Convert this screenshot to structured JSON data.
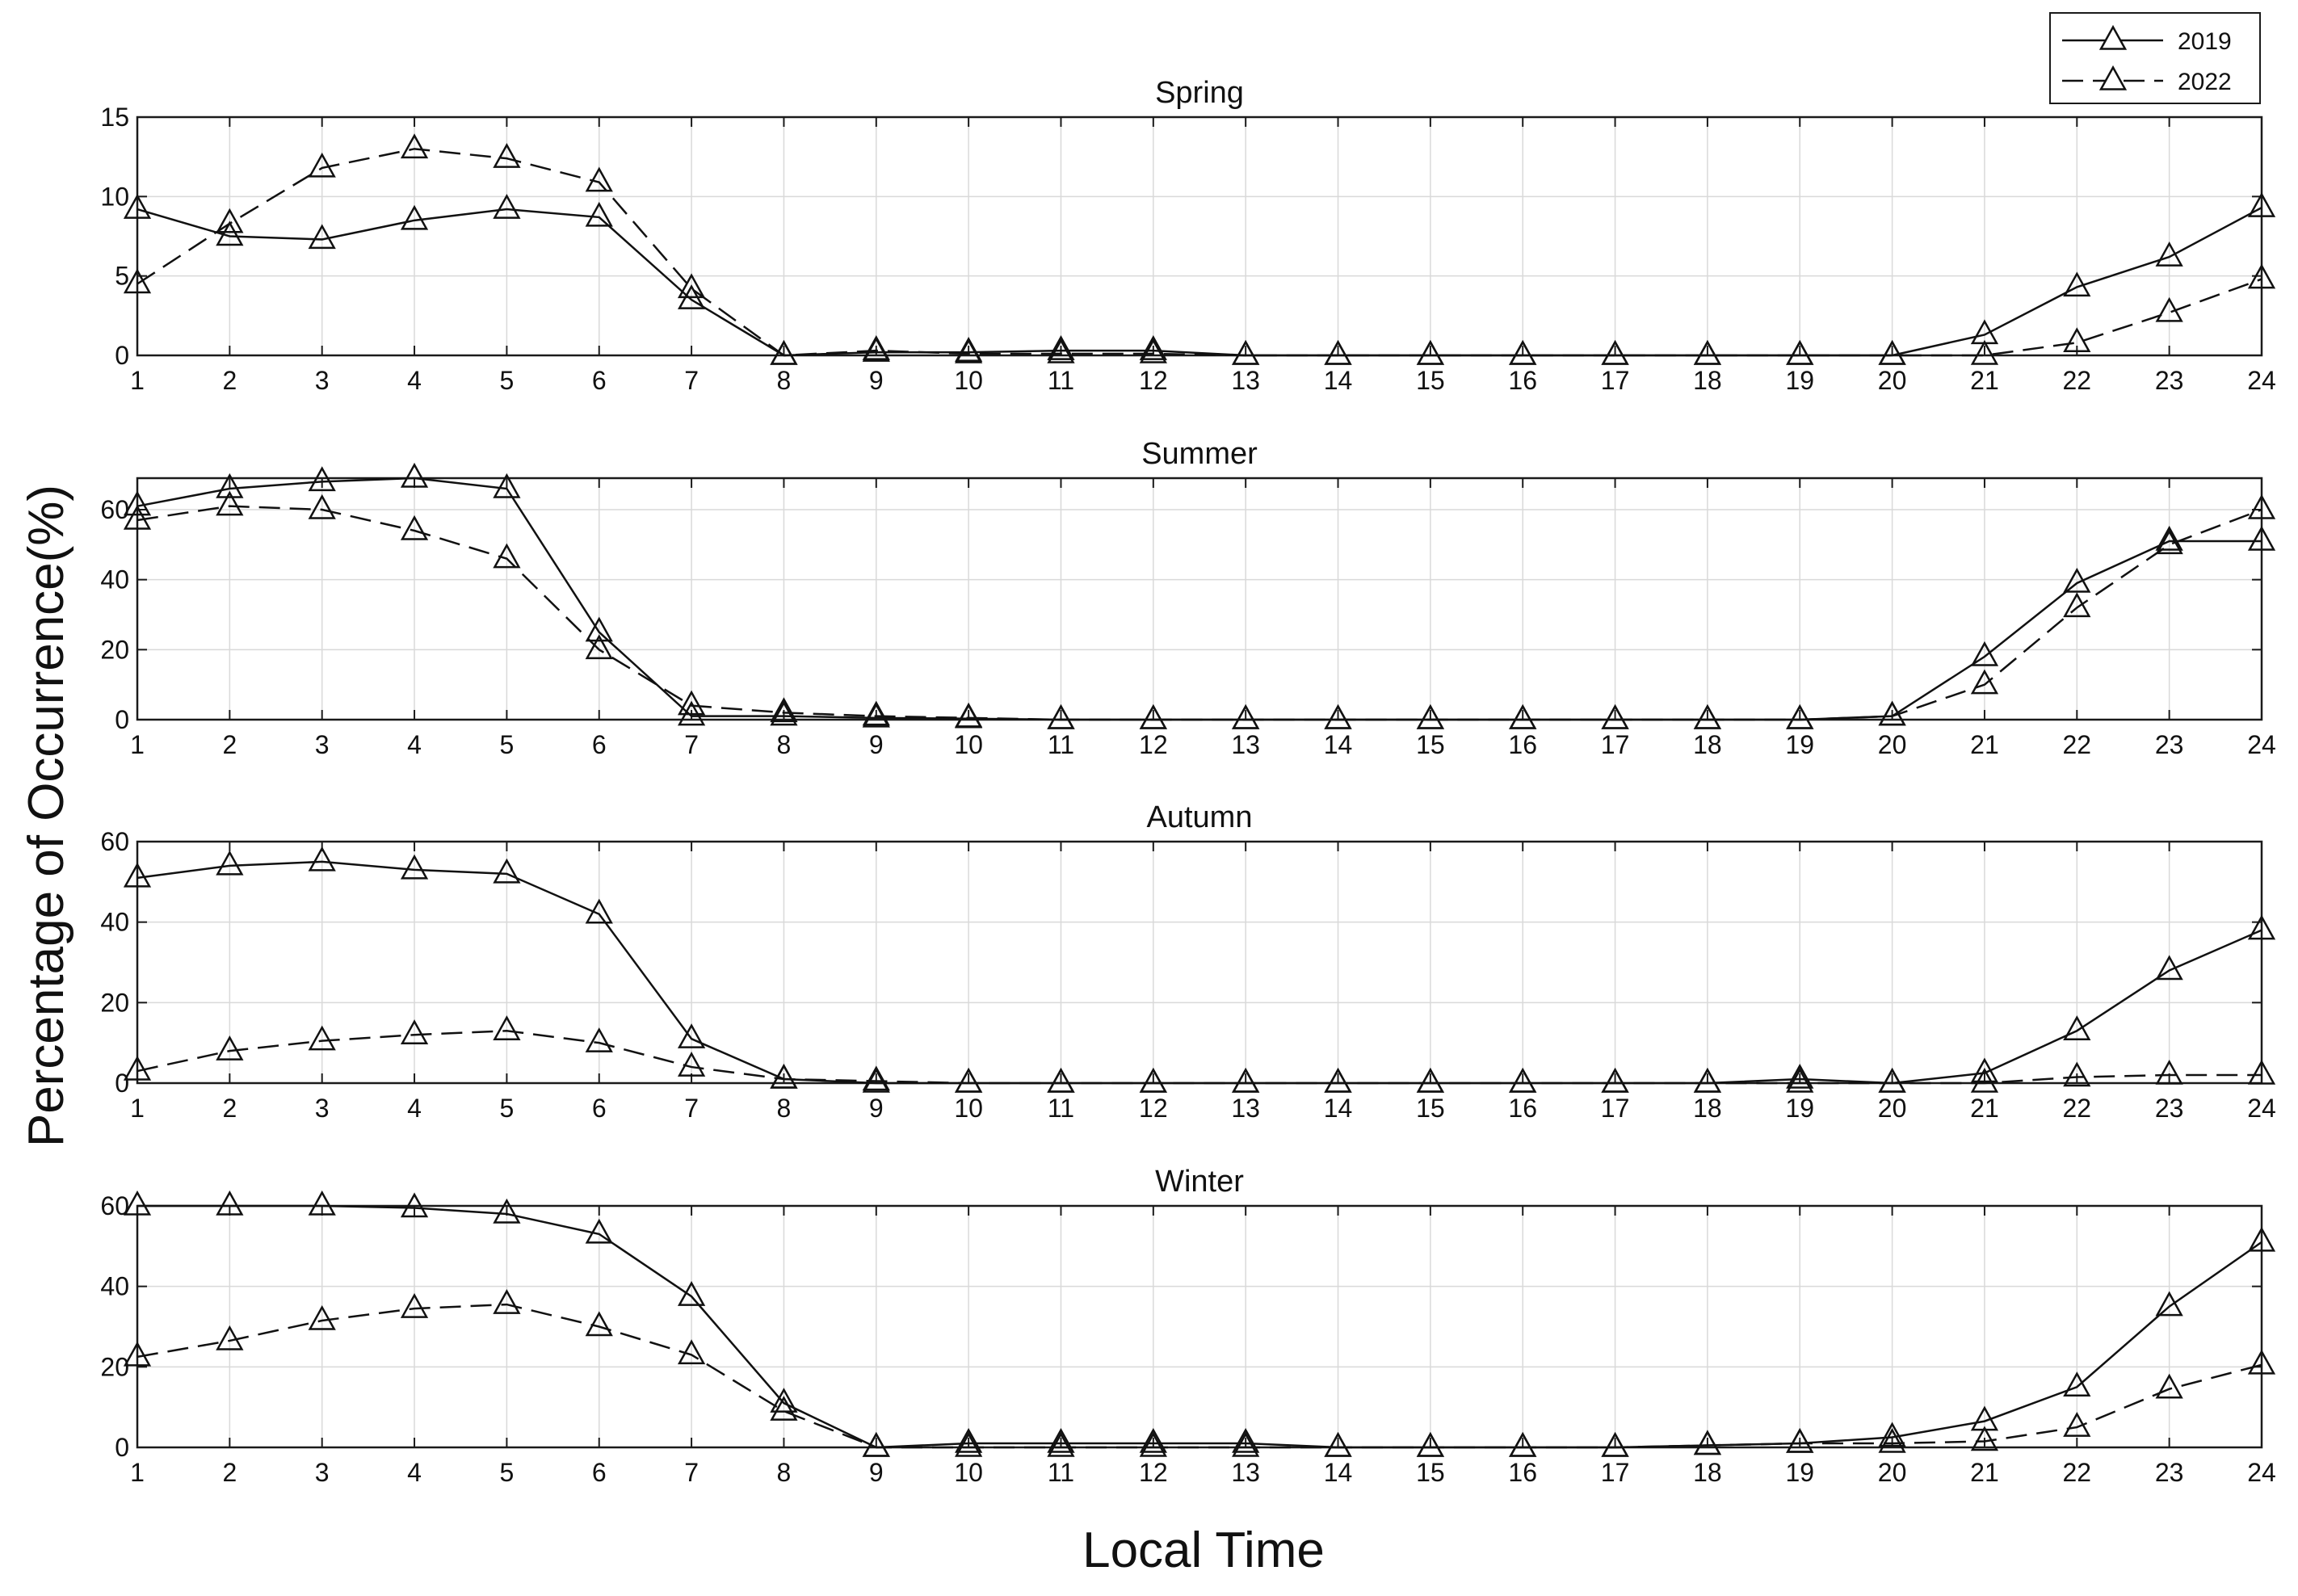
{
  "chart_data": {
    "type": "line",
    "ylabel": "Percentage of Occurrence(%)",
    "xlabel": "Local Time",
    "x": [
      1,
      2,
      3,
      4,
      5,
      6,
      7,
      8,
      9,
      10,
      11,
      12,
      13,
      14,
      15,
      16,
      17,
      18,
      19,
      20,
      21,
      22,
      23,
      24
    ],
    "xlim": [
      1,
      24
    ],
    "grid": true,
    "legend": {
      "placement": "top-right",
      "entries": [
        "2019",
        "2022"
      ]
    },
    "series_styles": {
      "2019": "solid",
      "2022": "dashed"
    },
    "marker": "triangle",
    "panels": [
      {
        "title": "Spring",
        "ylim": [
          0,
          15
        ],
        "yticks": [
          0,
          5,
          10,
          15
        ],
        "series": [
          {
            "name": "2019",
            "values": [
              9.2,
              7.5,
              7.3,
              8.5,
              9.2,
              8.7,
              3.5,
              0,
              0.2,
              0.2,
              0.3,
              0.3,
              0,
              0,
              0,
              0,
              0,
              0,
              0,
              0,
              1.3,
              4.3,
              6.2,
              9.3
            ]
          },
          {
            "name": "2022",
            "values": [
              4.5,
              8.3,
              11.8,
              13.0,
              12.4,
              10.9,
              4.2,
              0,
              0.3,
              0.1,
              0.1,
              0.1,
              0,
              0,
              0,
              0,
              0,
              0,
              0,
              0,
              0,
              0.8,
              2.7,
              4.8
            ]
          }
        ]
      },
      {
        "title": "Summer",
        "ylim": [
          0,
          69
        ],
        "yticks": [
          0,
          20,
          40,
          60
        ],
        "series": [
          {
            "name": "2019",
            "values": [
              61,
              66,
              68,
              69,
              66,
              25,
              1,
              1,
              0.5,
              0.3,
              0,
              0,
              0,
              0,
              0,
              0,
              0,
              0,
              0,
              1,
              18,
              39,
              51,
              51
            ]
          },
          {
            "name": "2022",
            "values": [
              57,
              61,
              60,
              54,
              46,
              20,
              4,
              2,
              1,
              0.5,
              0,
              0,
              0,
              0,
              0,
              0,
              0,
              0,
              0,
              1,
              10,
              32,
              50,
              60
            ]
          }
        ]
      },
      {
        "title": "Autumn",
        "ylim": [
          0,
          60
        ],
        "yticks": [
          0,
          20,
          40,
          60
        ],
        "series": [
          {
            "name": "2019",
            "values": [
              51,
              54,
              55,
              53,
              52,
              42,
              11,
              1,
              0,
              0,
              0,
              0,
              0,
              0,
              0,
              0,
              0,
              0,
              1,
              0,
              2.5,
              13,
              28,
              38
            ]
          },
          {
            "name": "2022",
            "values": [
              3,
              8,
              10.5,
              12,
              13,
              10,
              4,
              1,
              0.5,
              0,
              0,
              0,
              0,
              0,
              0,
              0,
              0,
              0,
              0,
              0,
              0,
              1.5,
              2,
              2
            ]
          }
        ]
      },
      {
        "title": "Winter",
        "ylim": [
          0,
          60
        ],
        "yticks": [
          0,
          20,
          40,
          60
        ],
        "series": [
          {
            "name": "2019",
            "values": [
              60,
              60,
              60,
              59.5,
              58,
              53,
              37.5,
              11,
              0,
              1,
              1,
              1,
              1,
              0,
              0,
              0,
              0,
              0.5,
              1,
              2.5,
              6.5,
              15,
              35,
              51
            ]
          },
          {
            "name": "2022",
            "values": [
              22.5,
              26.5,
              31.5,
              34.5,
              35.5,
              30,
              23,
              9,
              0,
              0,
              0,
              0,
              0,
              0,
              0,
              0,
              0,
              0.5,
              1,
              1,
              1.5,
              5,
              14.5,
              20.5
            ]
          }
        ]
      }
    ]
  }
}
